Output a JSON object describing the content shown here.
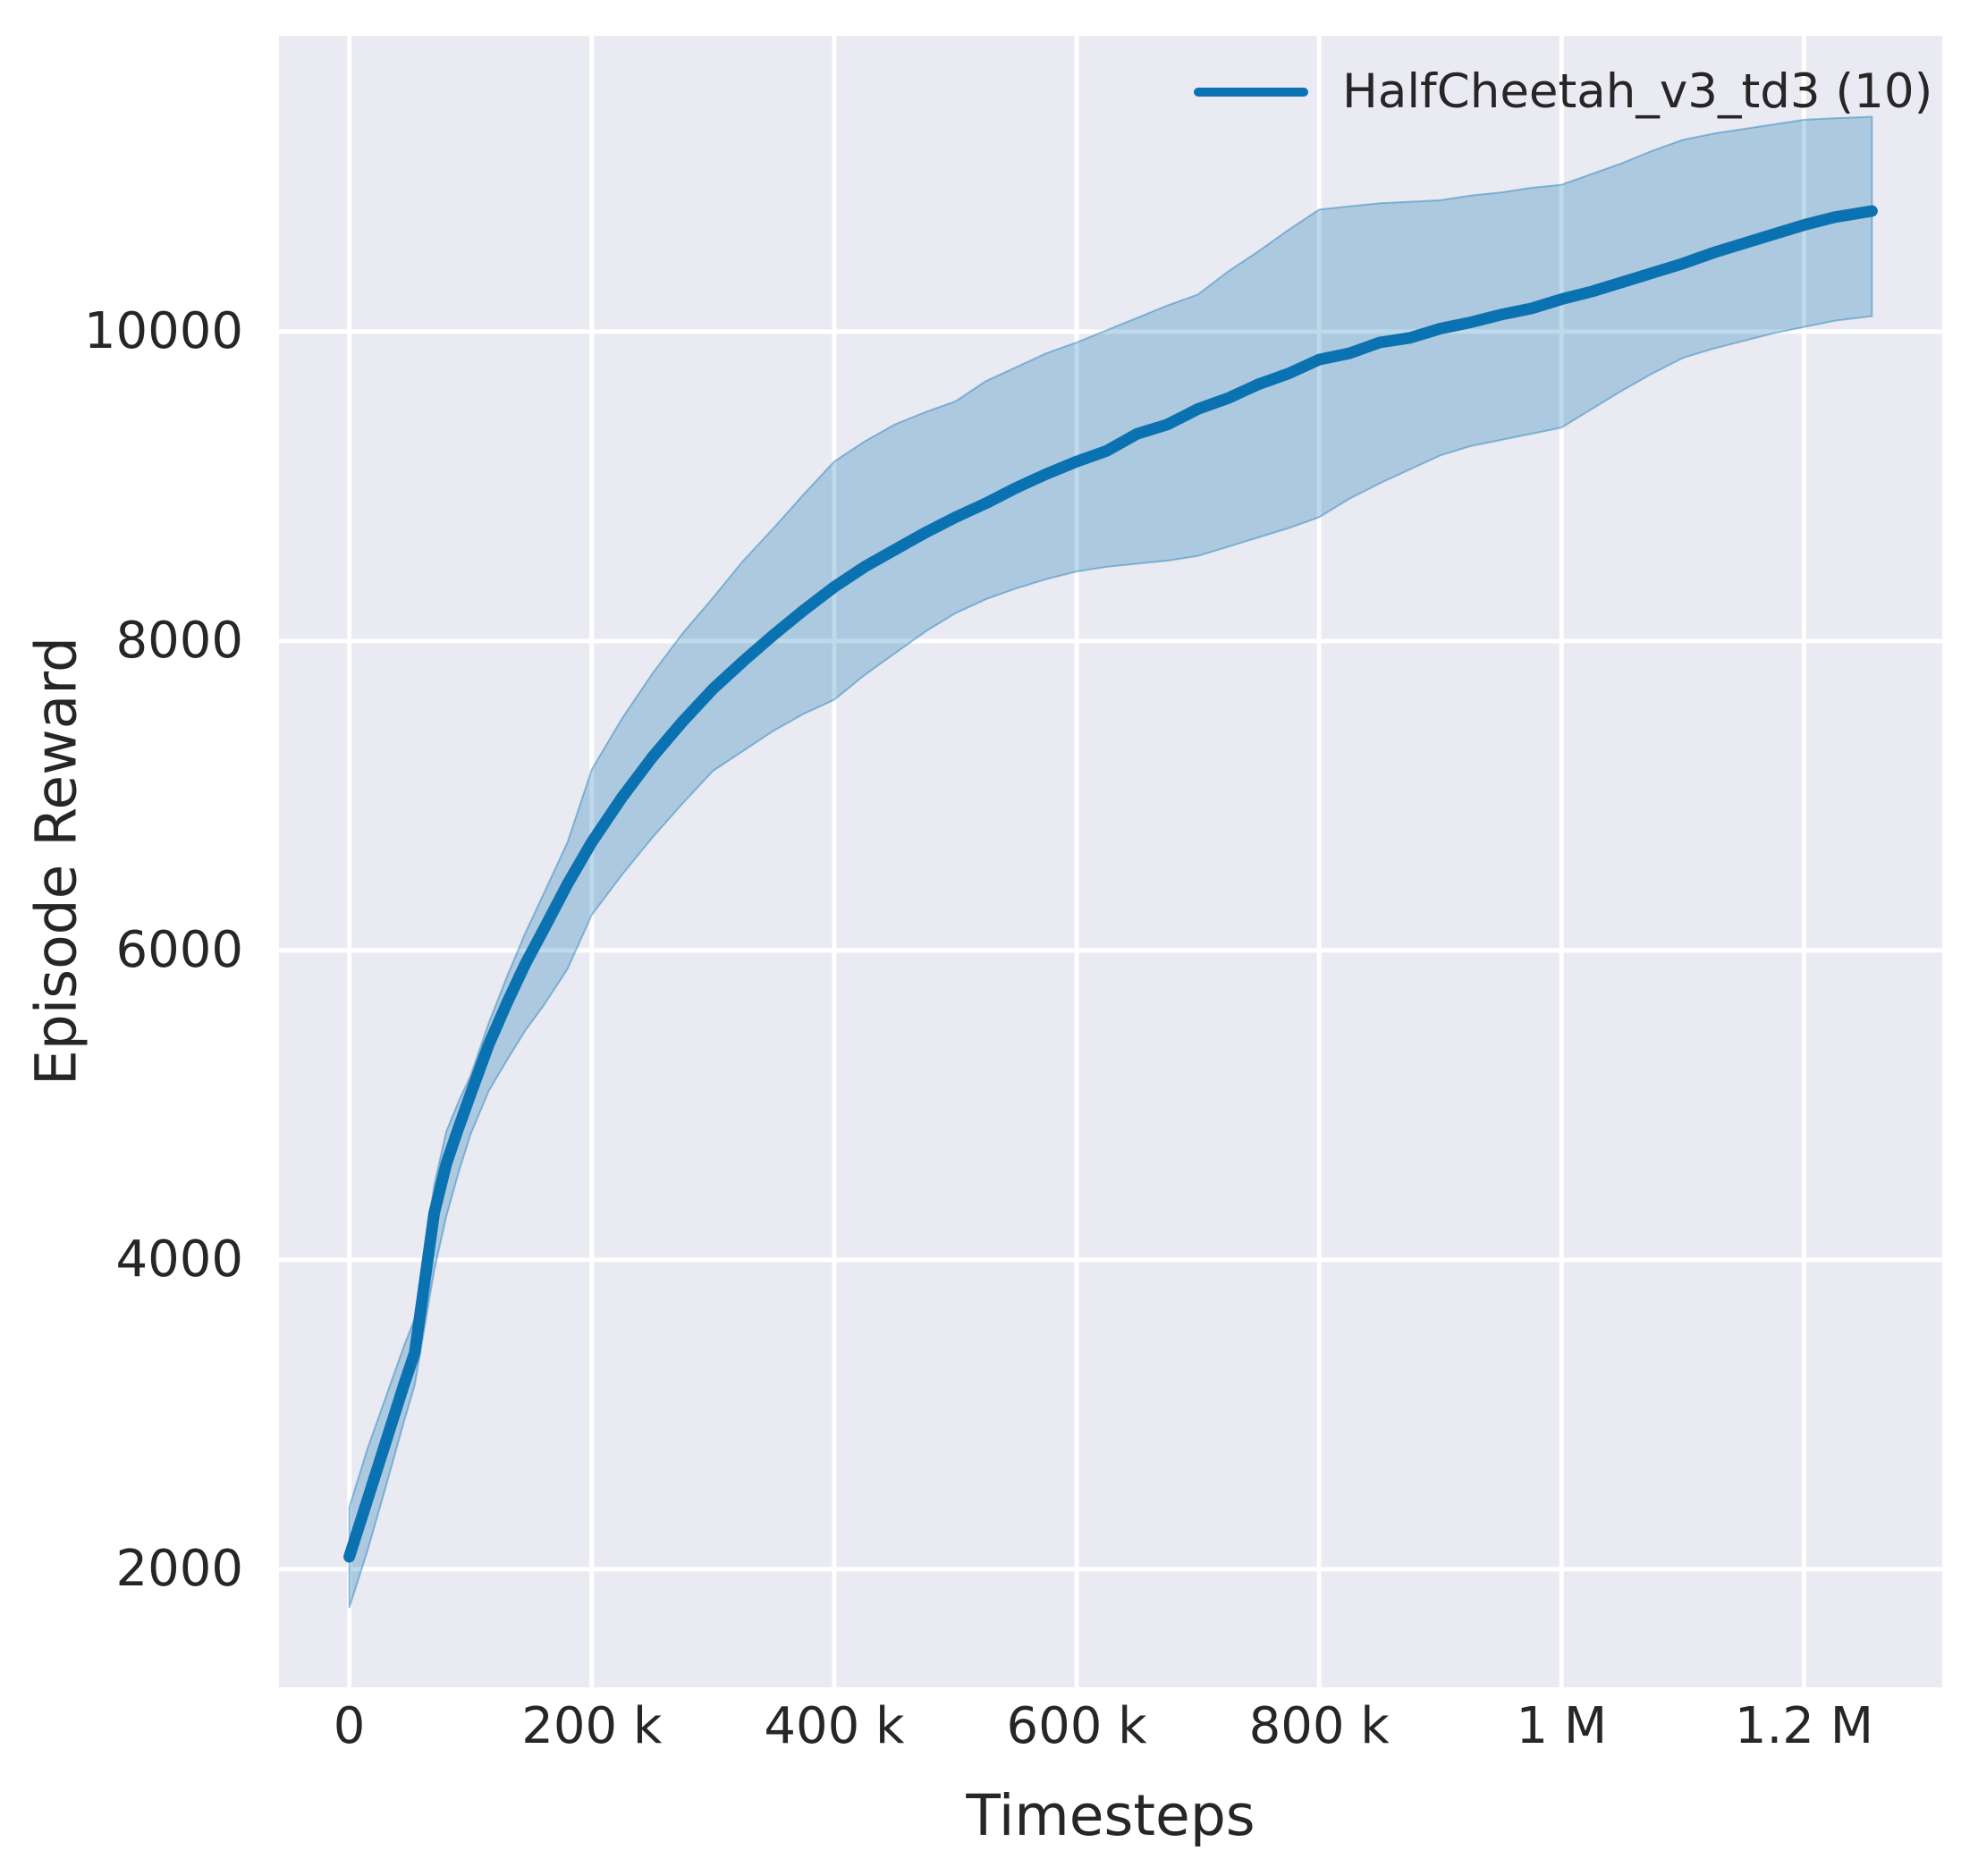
{
  "colors": {
    "accent_line": "#0b72b2",
    "band_fill_rgba": "rgba(11,114,178,0.27)",
    "band_edge_rgba": "rgba(11,114,178,0.40)",
    "axes_background": "#eaeaf2",
    "grid": "#ffffff",
    "text": "#262626",
    "figure_background": "#ffffff"
  },
  "chart_data": {
    "type": "line",
    "title": "",
    "xlabel": "Timesteps",
    "ylabel": "Episode Reward",
    "grid": true,
    "legend_position": "upper right",
    "legend": [
      {
        "label": "HalfCheetah_v3_td3 (10)",
        "color": "#0b72b2"
      }
    ],
    "xlim": [
      -58000,
      1314000
    ],
    "ylim": [
      1236,
      11913
    ],
    "x_ticks": [
      {
        "value": 0,
        "label": "0"
      },
      {
        "value": 200000,
        "label": "200 k"
      },
      {
        "value": 400000,
        "label": "400 k"
      },
      {
        "value": 600000,
        "label": "600 k"
      },
      {
        "value": 800000,
        "label": "800 k"
      },
      {
        "value": 1000000,
        "label": "1 M"
      },
      {
        "value": 1200000,
        "label": "1.2 M"
      }
    ],
    "y_ticks": [
      {
        "value": 2000,
        "label": "2000"
      },
      {
        "value": 4000,
        "label": "4000"
      },
      {
        "value": 6000,
        "label": "6000"
      },
      {
        "value": 8000,
        "label": "8000"
      },
      {
        "value": 10000,
        "label": "10000"
      }
    ],
    "series": [
      {
        "name": "HalfCheetah_v3_td3 (10)",
        "color": "#0b72b2",
        "x": [
          0,
          15000,
          30000,
          45000,
          54000,
          62000,
          70000,
          80000,
          90000,
          100000,
          115000,
          130000,
          145000,
          160000,
          180000,
          200000,
          225000,
          250000,
          275000,
          300000,
          325000,
          350000,
          375000,
          400000,
          425000,
          450000,
          475000,
          500000,
          525000,
          550000,
          575000,
          600000,
          625000,
          650000,
          675000,
          700000,
          725000,
          750000,
          775000,
          800000,
          825000,
          850000,
          875000,
          900000,
          925000,
          950000,
          975000,
          1000000,
          1025000,
          1050000,
          1075000,
          1100000,
          1125000,
          1150000,
          1175000,
          1200000,
          1225000,
          1256000
        ],
        "mean": [
          2080,
          2450,
          2820,
          3190,
          3400,
          3850,
          4300,
          4620,
          4850,
          5070,
          5390,
          5660,
          5910,
          6130,
          6430,
          6700,
          6990,
          7250,
          7480,
          7690,
          7870,
          8040,
          8200,
          8350,
          8480,
          8590,
          8700,
          8800,
          8890,
          8990,
          9080,
          9160,
          9230,
          9340,
          9400,
          9500,
          9570,
          9660,
          9730,
          9820,
          9860,
          9930,
          9960,
          10020,
          10060,
          10110,
          10150,
          10210,
          10260,
          10320,
          10380,
          10440,
          10510,
          10570,
          10630,
          10690,
          10740,
          10780
        ],
        "lower": [
          1750,
          2120,
          2530,
          2950,
          3190,
          3560,
          3930,
          4280,
          4560,
          4810,
          5090,
          5290,
          5480,
          5640,
          5880,
          6230,
          6490,
          6730,
          6950,
          7160,
          7290,
          7420,
          7530,
          7620,
          7780,
          7920,
          8060,
          8180,
          8270,
          8340,
          8400,
          8450,
          8480,
          8500,
          8520,
          8550,
          8610,
          8670,
          8730,
          8800,
          8920,
          9020,
          9110,
          9200,
          9260,
          9300,
          9340,
          9380,
          9500,
          9620,
          9730,
          9830,
          9890,
          9940,
          9990,
          10030,
          10070,
          10100
        ],
        "upper": [
          2400,
          2780,
          3110,
          3440,
          3620,
          4050,
          4480,
          4830,
          5020,
          5190,
          5530,
          5830,
          6110,
          6360,
          6700,
          7170,
          7500,
          7790,
          8050,
          8280,
          8520,
          8730,
          8950,
          9160,
          9290,
          9400,
          9480,
          9550,
          9680,
          9770,
          9860,
          9930,
          10010,
          10090,
          10170,
          10240,
          10390,
          10520,
          10660,
          10790,
          10810,
          10830,
          10840,
          10850,
          10880,
          10900,
          10930,
          10950,
          11020,
          11090,
          11170,
          11240,
          11280,
          11310,
          11340,
          11370,
          11380,
          11390
        ]
      }
    ]
  }
}
